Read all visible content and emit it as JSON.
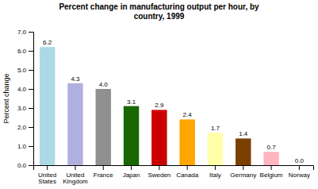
{
  "chart_data": {
    "type": "bar",
    "title": "Percent change in manufacturing output per hour, by\ncountry, 1999",
    "ylabel": "Percent change",
    "categories": [
      "United\nStates",
      "United\nKingdom",
      "France",
      "Japan",
      "Sweden",
      "Canada",
      "Italy",
      "Germany",
      "Belgium",
      "Norway"
    ],
    "values": [
      6.2,
      4.3,
      4.0,
      3.1,
      2.9,
      2.4,
      1.7,
      1.4,
      0.7,
      0.0
    ],
    "value_labels": [
      "6.2",
      "4.3",
      "4.0",
      "3.1",
      "2.9",
      "2.4",
      "1.7",
      "1.4",
      "0.7",
      "0.0"
    ],
    "colors": [
      "#add8e6",
      "#b0b0e0",
      "#909090",
      "#1a6600",
      "#cc0000",
      "#ffa500",
      "#ffffaa",
      "#7b3f00",
      "#ffb6c1",
      "#f5f5dc"
    ],
    "ylim": [
      0,
      7.0
    ],
    "yticks": [
      {
        "value": 0.0,
        "label": "0.0"
      },
      {
        "value": 1.0,
        "label": "1.0"
      },
      {
        "value": 2.0,
        "label": "2.0"
      },
      {
        "value": 3.0,
        "label": "3.0"
      },
      {
        "value": 4.0,
        "label": "4.0"
      },
      {
        "value": 5.0,
        "label": "5.0"
      },
      {
        "value": 6.0,
        "label": "6.0"
      },
      {
        "value": 7.0,
        "label": "7.0"
      }
    ],
    "data_labels": true,
    "grid": false
  }
}
